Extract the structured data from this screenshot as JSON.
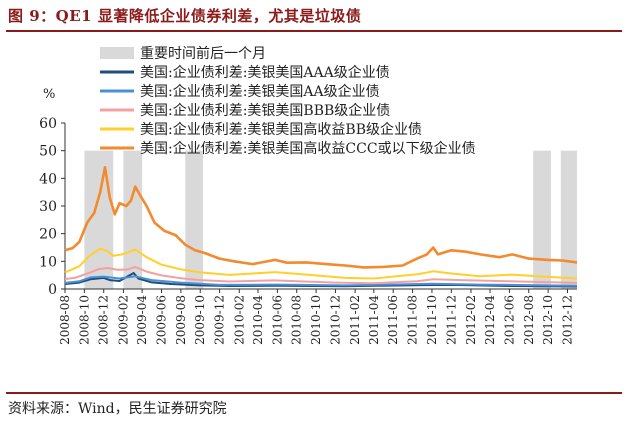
{
  "figure": {
    "title": "图 9：QE1 显著降低企业债券利差，尤其是垃圾债",
    "source": "资料来源：Wind，民生证券研究院"
  },
  "chart_data": {
    "type": "line",
    "ylabel": "%",
    "ylim": [
      0,
      60
    ],
    "yticks": [
      0,
      10,
      20,
      30,
      40,
      50,
      60
    ],
    "xticks": [
      "2008-08",
      "2008-10",
      "2008-12",
      "2009-02",
      "2009-04",
      "2009-06",
      "2009-08",
      "2009-10",
      "2009-12",
      "2010-02",
      "2010-04",
      "2010-06",
      "2010-08",
      "2010-10",
      "2010-12",
      "2011-02",
      "2011-04",
      "2011-06",
      "2011-08",
      "2011-10",
      "2011-12",
      "2012-02",
      "2012-04",
      "2012-06",
      "2012-08",
      "2012-10",
      "2012-12"
    ],
    "x_start": "2008-08",
    "x_end": "2012-12",
    "shaded_label": "重要时间前后一个月",
    "shaded_color": "#d9d9d9",
    "shaded_periods": [
      [
        "2008-10-01",
        "2008-12-31"
      ],
      [
        "2009-02-01",
        "2009-04-01"
      ],
      [
        "2009-08-15",
        "2009-10-10"
      ],
      [
        "2012-08-15",
        "2012-10-10"
      ],
      [
        "2012-11-10",
        "2012-12-31"
      ]
    ],
    "legend_position": "top-left",
    "series": [
      {
        "name": "美国:企业债利差:美银美国AAA级企业债",
        "color": "#1f4e79",
        "points": [
          [
            "2008-08-01",
            1.8
          ],
          [
            "2008-09-15",
            2.3
          ],
          [
            "2008-10-20",
            3.5
          ],
          [
            "2008-12-01",
            4.0
          ],
          [
            "2008-12-20",
            3.2
          ],
          [
            "2009-01-20",
            2.9
          ],
          [
            "2009-03-05",
            5.8
          ],
          [
            "2009-03-20",
            3.8
          ],
          [
            "2009-05-01",
            2.4
          ],
          [
            "2009-07-01",
            1.8
          ],
          [
            "2009-10-01",
            1.3
          ],
          [
            "2010-01-01",
            1.1
          ],
          [
            "2010-06-01",
            1.2
          ],
          [
            "2011-01-01",
            1.0
          ],
          [
            "2011-09-01",
            1.4
          ],
          [
            "2011-12-01",
            1.5
          ],
          [
            "2012-06-01",
            1.1
          ],
          [
            "2012-12-31",
            0.9
          ]
        ]
      },
      {
        "name": "美国:企业债利差:美银美国AA级企业债",
        "color": "#4a90d9",
        "points": [
          [
            "2008-08-01",
            2.2
          ],
          [
            "2008-09-15",
            2.8
          ],
          [
            "2008-10-20",
            4.2
          ],
          [
            "2008-12-01",
            4.5
          ],
          [
            "2009-01-20",
            3.8
          ],
          [
            "2009-03-10",
            4.6
          ],
          [
            "2009-05-01",
            3.2
          ],
          [
            "2009-08-01",
            2.3
          ],
          [
            "2009-12-01",
            1.5
          ],
          [
            "2010-06-01",
            1.6
          ],
          [
            "2011-01-01",
            1.3
          ],
          [
            "2011-10-01",
            1.9
          ],
          [
            "2012-03-01",
            1.6
          ],
          [
            "2012-12-31",
            1.2
          ]
        ]
      },
      {
        "name": "美国:企业债利差:美银美国BBB级企业债",
        "color": "#f4a0a0",
        "points": [
          [
            "2008-08-01",
            3.6
          ],
          [
            "2008-09-01",
            4.0
          ],
          [
            "2008-10-15",
            5.8
          ],
          [
            "2008-11-15",
            7.2
          ],
          [
            "2008-12-15",
            7.6
          ],
          [
            "2009-01-15",
            6.9
          ],
          [
            "2009-02-15",
            7.1
          ],
          [
            "2009-03-10",
            8.0
          ],
          [
            "2009-04-15",
            6.3
          ],
          [
            "2009-06-01",
            4.9
          ],
          [
            "2009-08-01",
            3.9
          ],
          [
            "2009-10-01",
            3.2
          ],
          [
            "2010-01-01",
            2.7
          ],
          [
            "2010-05-20",
            3.1
          ],
          [
            "2010-12-01",
            2.3
          ],
          [
            "2011-04-01",
            2.1
          ],
          [
            "2011-08-15",
            2.8
          ],
          [
            "2011-10-05",
            3.5
          ],
          [
            "2012-01-01",
            3.2
          ],
          [
            "2012-06-01",
            2.8
          ],
          [
            "2012-12-31",
            2.2
          ]
        ]
      },
      {
        "name": "美国:企业债利差:美银美国高收益BB级企业债",
        "color": "#ffd02a",
        "points": [
          [
            "2008-08-01",
            6.0
          ],
          [
            "2008-09-15",
            8.2
          ],
          [
            "2008-10-15",
            11.8
          ],
          [
            "2008-11-20",
            14.6
          ],
          [
            "2008-12-10",
            13.8
          ],
          [
            "2009-01-01",
            12.0
          ],
          [
            "2009-02-01",
            12.6
          ],
          [
            "2009-03-10",
            14.3
          ],
          [
            "2009-04-15",
            11.5
          ],
          [
            "2009-06-01",
            8.8
          ],
          [
            "2009-08-01",
            7.1
          ],
          [
            "2009-10-01",
            6.0
          ],
          [
            "2010-01-01",
            5.1
          ],
          [
            "2010-05-25",
            6.1
          ],
          [
            "2010-09-01",
            5.2
          ],
          [
            "2011-01-01",
            4.0
          ],
          [
            "2011-04-01",
            3.8
          ],
          [
            "2011-08-20",
            5.4
          ],
          [
            "2011-10-05",
            6.4
          ],
          [
            "2011-12-01",
            5.6
          ],
          [
            "2012-03-01",
            4.6
          ],
          [
            "2012-06-05",
            5.2
          ],
          [
            "2012-12-31",
            3.8
          ]
        ]
      },
      {
        "name": "美国:企业债利差:美银美国高收益CCC或以下级企业债",
        "color": "#f28a2e",
        "points": [
          [
            "2008-08-01",
            14.0
          ],
          [
            "2008-08-25",
            14.8
          ],
          [
            "2008-09-15",
            17.0
          ],
          [
            "2008-10-10",
            24.0
          ],
          [
            "2008-11-01",
            27.5
          ],
          [
            "2008-11-20",
            35.0
          ],
          [
            "2008-12-05",
            44.0
          ],
          [
            "2008-12-20",
            33.0
          ],
          [
            "2009-01-05",
            27.0
          ],
          [
            "2009-01-20",
            31.0
          ],
          [
            "2009-02-10",
            30.0
          ],
          [
            "2009-02-25",
            32.0
          ],
          [
            "2009-03-10",
            37.0
          ],
          [
            "2009-03-25",
            34.0
          ],
          [
            "2009-04-15",
            30.0
          ],
          [
            "2009-05-10",
            24.0
          ],
          [
            "2009-06-10",
            21.0
          ],
          [
            "2009-07-15",
            19.5
          ],
          [
            "2009-08-15",
            16.0
          ],
          [
            "2009-09-15",
            14.0
          ],
          [
            "2009-10-15",
            13.0
          ],
          [
            "2009-12-01",
            11.0
          ],
          [
            "2010-01-15",
            10.0
          ],
          [
            "2010-03-15",
            9.0
          ],
          [
            "2010-05-25",
            10.5
          ],
          [
            "2010-07-01",
            9.5
          ],
          [
            "2010-09-01",
            9.6
          ],
          [
            "2010-11-01",
            9.0
          ],
          [
            "2011-01-01",
            8.5
          ],
          [
            "2011-03-01",
            7.8
          ],
          [
            "2011-05-01",
            8.0
          ],
          [
            "2011-07-01",
            8.5
          ],
          [
            "2011-08-15",
            11.0
          ],
          [
            "2011-09-15",
            12.5
          ],
          [
            "2011-10-05",
            15.0
          ],
          [
            "2011-10-20",
            12.5
          ],
          [
            "2011-12-01",
            14.0
          ],
          [
            "2012-01-15",
            13.5
          ],
          [
            "2012-03-01",
            12.5
          ],
          [
            "2012-05-01",
            11.5
          ],
          [
            "2012-06-10",
            12.5
          ],
          [
            "2012-08-01",
            11.0
          ],
          [
            "2012-10-01",
            10.5
          ],
          [
            "2012-11-15",
            10.3
          ],
          [
            "2012-12-31",
            9.6
          ]
        ]
      }
    ]
  }
}
